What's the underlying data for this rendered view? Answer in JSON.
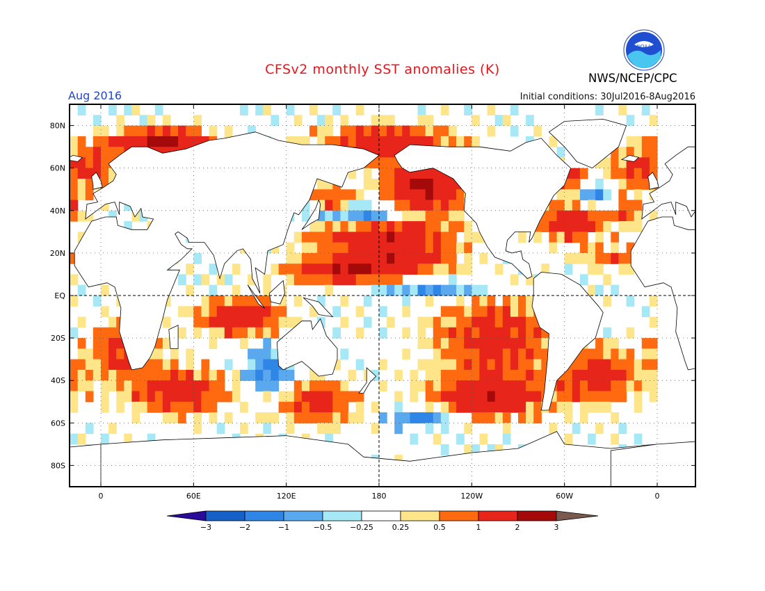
{
  "header": {
    "title": "CFSv2 monthly SST anomalies (K)",
    "month": "Aug 2016",
    "initial_conditions": "Initial conditions: 30Jul2016-8Aug2016",
    "agency": "NWS/NCEP/CPC",
    "logo_text": "NOAA"
  },
  "colors": {
    "title": "#e8141b",
    "month": "#2244cc",
    "land": "#ffffff",
    "frame": "#000000"
  },
  "map": {
    "lat_labels": [
      "80N",
      "60N",
      "40N",
      "20N",
      "EQ",
      "20S",
      "40S",
      "60S",
      "80S"
    ],
    "lon_labels": [
      "0",
      "60E",
      "120E",
      "180",
      "120W",
      "60W",
      "0"
    ]
  },
  "legend": {
    "labels": [
      "-3",
      "-2",
      "-1",
      "-0.5",
      "-0.25",
      "0.25",
      "0.5",
      "1",
      "2",
      "3"
    ],
    "colors": [
      "#2a0a9a",
      "#1760c8",
      "#2f86e6",
      "#5aa8ee",
      "#a6e8f6",
      "#ffffff",
      "#ffe58a",
      "#ff6a10",
      "#e8251a",
      "#a50a0a",
      "#7a5a4e"
    ]
  }
}
